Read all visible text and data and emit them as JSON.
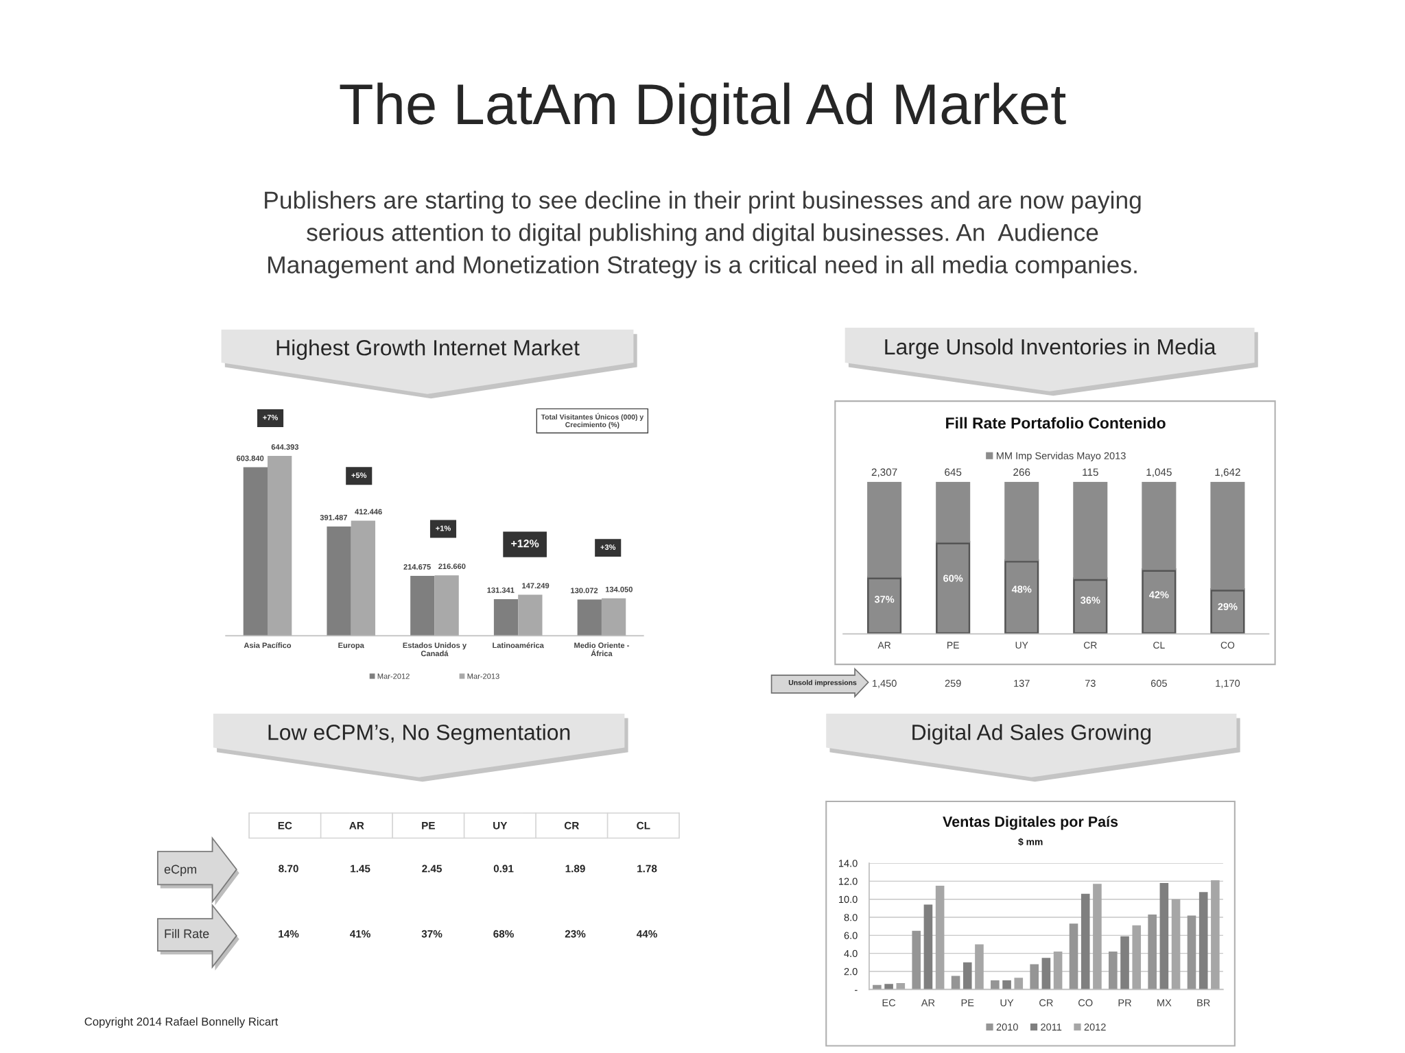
{
  "chart_data": [
    {
      "type": "other",
      "title": "The LatAm Digital Ad Market",
      "subtitle": "Publishers are starting to see decline in their print businesses and are now paying serious attention to digital publishing and digital businesses. An  Audience Management and Monetization Strategy is a critical need in all media companies."
    },
    {
      "type": "bar",
      "title": "Highest Growth Internet Market",
      "subtitle": "Total Visitantes Únicos (000) y Crecimiento (%)",
      "categories": [
        "Asia Pacífico",
        "Europa",
        "Estados Unidos y Canadá",
        "Latinoamérica",
        "Medio Oriente - África"
      ],
      "series": [
        {
          "name": "Mar-2012",
          "color": "#7f7f7f",
          "values": [
            603.84,
            391.487,
            214.675,
            131.341,
            130.072
          ],
          "value_labels": [
            "603.840",
            "391.487",
            "214.675",
            "131.341",
            "130.072"
          ]
        },
        {
          "name": "Mar-2013",
          "color": "#a9a9a9",
          "values": [
            644.393,
            412.446,
            216.66,
            147.249,
            134.05
          ],
          "value_labels": [
            "644.393",
            "412.446",
            "216.660",
            "147.249",
            "134.050"
          ]
        }
      ],
      "annotations": [
        "+7%",
        "+5%",
        "+1%",
        "+12%",
        "+3%"
      ],
      "legend": "bottom",
      "tick_labels": "x"
    },
    {
      "type": "bar",
      "stacked": true,
      "title": "Large Unsold Inventories in Media",
      "subtitle": "Fill Rate Portafolio Contenido",
      "categories": [
        "AR",
        "PE",
        "UY",
        "CR",
        "CL",
        "CO"
      ],
      "series": [
        {
          "name": "MM Imp Servidas Mayo 2013",
          "color": "#8c8c8c",
          "values": [
            37,
            60,
            48,
            36,
            42,
            29
          ],
          "value_labels": [
            "37%",
            "60%",
            "48%",
            "36%",
            "42%",
            "29%"
          ]
        },
        {
          "color": "#8c8c8c",
          "values": [
            63,
            40,
            52,
            64,
            58,
            71
          ]
        }
      ],
      "annotations": [
        {
          "text": "2,307",
          "x": "AR",
          "y": 100
        },
        {
          "text": "645",
          "x": "PE",
          "y": 100
        },
        {
          "text": "266",
          "x": "UY",
          "y": 100
        },
        {
          "text": "115",
          "x": "CR",
          "y": 100
        },
        {
          "text": "1,045",
          "x": "CL",
          "y": 100
        },
        {
          "text": "1,642",
          "x": "CO",
          "y": 100
        },
        "Unsold impressions",
        "1,450",
        "259",
        "137",
        "73",
        "605",
        "1,170"
      ],
      "legend": "top",
      "tick_labels": "x"
    },
    {
      "type": "other",
      "title": "Low eCPM’s, No Segmentation",
      "categories": [
        "EC",
        "AR",
        "PE",
        "UY",
        "CR",
        "CL"
      ],
      "series": [
        {
          "name": "eCpm",
          "values": [
            8.7,
            1.45,
            2.45,
            0.91,
            1.89,
            1.78
          ],
          "value_labels": [
            "8.70",
            "1.45",
            "2.45",
            "0.91",
            "1.89",
            "1.78"
          ]
        },
        {
          "name": "Fill Rate",
          "values": [
            14,
            41,
            37,
            68,
            23,
            44
          ],
          "value_labels": [
            "14%",
            "41%",
            "37%",
            "68%",
            "23%",
            "44%"
          ]
        }
      ],
      "annotations": [
        "Copyright 2014 Rafael Bonnelly Ricart"
      ]
    },
    {
      "type": "bar",
      "title": "Digital Ad Sales Growing",
      "subtitle": "Ventas Digitales por País",
      "ylabel": "$ mm",
      "categories": [
        "EC",
        "AR",
        "PE",
        "UY",
        "CR",
        "CO",
        "PR",
        "MX",
        "BR"
      ],
      "series": [
        {
          "name": "2010",
          "color": "#959595",
          "values": [
            0.5,
            6.5,
            1.5,
            1.0,
            2.8,
            7.3,
            4.2,
            8.3,
            8.2
          ]
        },
        {
          "name": "2011",
          "color": "#7f7f7f",
          "values": [
            0.6,
            9.4,
            3.0,
            1.0,
            3.5,
            10.6,
            5.9,
            11.8,
            10.8
          ]
        },
        {
          "name": "2012",
          "color": "#a6a6a6",
          "values": [
            0.7,
            11.5,
            5.0,
            1.3,
            4.2,
            11.7,
            7.1,
            10.0,
            12.1
          ]
        }
      ],
      "ylim": [
        0,
        14
      ],
      "yticks": [
        {
          "value": 0,
          "label": "-"
        },
        {
          "value": 2,
          "label": "2.0"
        },
        {
          "value": 4,
          "label": "4.0"
        },
        {
          "value": 6,
          "label": "6.0"
        },
        {
          "value": 8,
          "label": "8.0"
        },
        {
          "value": 10,
          "label": "10.0"
        },
        {
          "value": 12,
          "label": "12.0"
        },
        {
          "value": 14,
          "label": "14.0"
        }
      ],
      "grid": "y",
      "legend": "bottom"
    }
  ]
}
